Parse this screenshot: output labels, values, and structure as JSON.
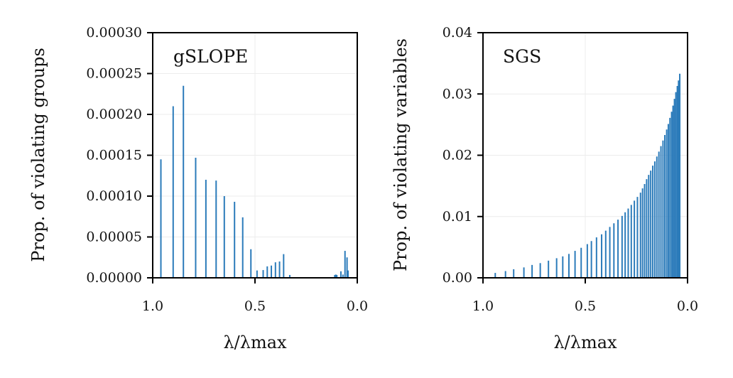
{
  "chart_data": [
    {
      "type": "bar",
      "title": "gSLOPE",
      "xlabel": "λ/λmax",
      "ylabel": "Prop. of violating groups",
      "xlim": [
        1.0,
        0.0
      ],
      "ylim": [
        0,
        0.0003
      ],
      "grid": true,
      "bar_color": "#2b7bba",
      "x_ticks": [
        {
          "value": 1.0,
          "label": "1.0"
        },
        {
          "value": 0.5,
          "label": "0.5"
        },
        {
          "value": 0.0,
          "label": "0.0"
        }
      ],
      "y_ticks": [
        {
          "value": 0,
          "label": "0.00000"
        },
        {
          "value": 5e-05,
          "label": "0.00005"
        },
        {
          "value": 0.0001,
          "label": "0.00010"
        },
        {
          "value": 0.00015,
          "label": "0.00015"
        },
        {
          "value": 0.0002,
          "label": "0.00020"
        },
        {
          "value": 0.00025,
          "label": "0.00025"
        },
        {
          "value": 0.0003,
          "label": "0.00030"
        }
      ],
      "x": [
        0.96,
        0.9,
        0.85,
        0.79,
        0.74,
        0.69,
        0.65,
        0.6,
        0.56,
        0.52,
        0.49,
        0.46,
        0.44,
        0.42,
        0.4,
        0.38,
        0.36,
        0.33,
        0.11,
        0.105,
        0.1,
        0.08,
        0.07,
        0.06,
        0.05,
        0.045
      ],
      "values": [
        0.000145,
        0.00021,
        0.000235,
        0.000147,
        0.00012,
        0.000119,
        0.0001,
        9.3e-05,
        7.4e-05,
        3.5e-05,
        9e-06,
        9.5e-06,
        1.4e-05,
        1.5e-05,
        1.9e-05,
        2e-05,
        2.9e-05,
        3.5e-06,
        3.5e-06,
        4e-06,
        3.5e-06,
        8e-06,
        4e-06,
        3.3e-05,
        2.5e-05,
        9e-06
      ]
    },
    {
      "type": "bar",
      "title": "SGS",
      "xlabel": "λ/λmax",
      "ylabel": "Prop. of violating variables",
      "xlim": [
        1.0,
        0.0
      ],
      "ylim": [
        0,
        0.04
      ],
      "grid": true,
      "bar_color": "#2b7bba",
      "x_ticks": [
        {
          "value": 1.0,
          "label": "1.0"
        },
        {
          "value": 0.5,
          "label": "0.5"
        },
        {
          "value": 0.0,
          "label": "0.0"
        }
      ],
      "y_ticks": [
        {
          "value": 0,
          "label": "0.00"
        },
        {
          "value": 0.01,
          "label": "0.01"
        },
        {
          "value": 0.02,
          "label": "0.02"
        },
        {
          "value": 0.03,
          "label": "0.03"
        },
        {
          "value": 0.04,
          "label": "0.04"
        }
      ],
      "x": [
        0.94,
        0.89,
        0.85,
        0.8,
        0.76,
        0.72,
        0.68,
        0.64,
        0.61,
        0.58,
        0.55,
        0.52,
        0.49,
        0.47,
        0.445,
        0.42,
        0.4,
        0.38,
        0.36,
        0.34,
        0.32,
        0.305,
        0.29,
        0.275,
        0.26,
        0.245,
        0.23,
        0.22,
        0.21,
        0.2,
        0.19,
        0.18,
        0.17,
        0.16,
        0.15,
        0.14,
        0.13,
        0.12,
        0.111,
        0.102,
        0.094,
        0.086,
        0.078,
        0.071,
        0.064,
        0.057,
        0.05,
        0.044,
        0.038
      ],
      "values": [
        0.0008,
        0.0011,
        0.0014,
        0.0017,
        0.0021,
        0.0024,
        0.0028,
        0.0032,
        0.0035,
        0.0039,
        0.0044,
        0.0049,
        0.0055,
        0.006,
        0.0066,
        0.0071,
        0.0077,
        0.0083,
        0.0089,
        0.0095,
        0.0101,
        0.0107,
        0.0113,
        0.0119,
        0.0126,
        0.0132,
        0.0139,
        0.0146,
        0.0153,
        0.0161,
        0.0168,
        0.0175,
        0.0183,
        0.019,
        0.0198,
        0.0206,
        0.0215,
        0.0224,
        0.0233,
        0.0242,
        0.0251,
        0.0261,
        0.0271,
        0.0281,
        0.0292,
        0.0303,
        0.0313,
        0.0322,
        0.0333
      ]
    }
  ]
}
